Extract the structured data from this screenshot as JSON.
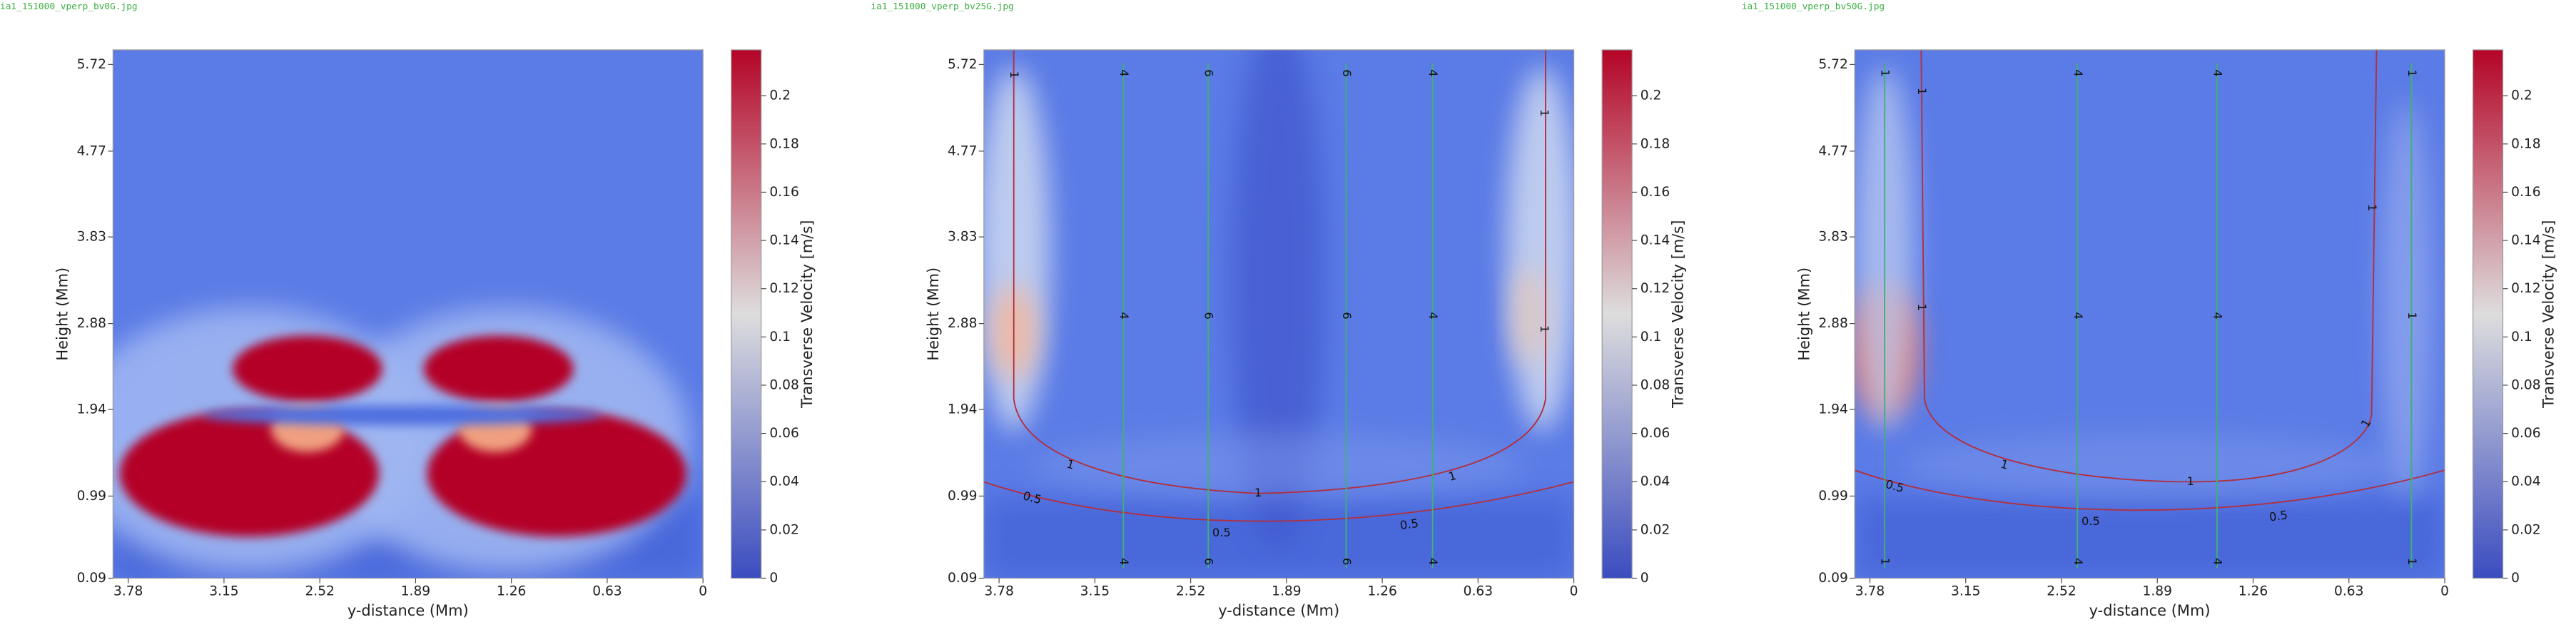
{
  "chart_data": [
    {
      "type": "heatmap",
      "title": "ia1_151000_vperp_bv0G.jpg",
      "xlabel": "y-distance (Mm)",
      "ylabel": "Height (Mm)",
      "xlim": [
        3.88,
        0
      ],
      "xticks": [
        3.78,
        3.15,
        2.52,
        1.89,
        1.26,
        0.63,
        0
      ],
      "ylim": [
        0.09,
        5.88
      ],
      "yticks": [
        0.09,
        0.99,
        1.94,
        2.88,
        3.83,
        4.77,
        5.72
      ],
      "colorbar": {
        "label": "Transverse Velocity [m/s]",
        "lim": [
          0,
          0.219
        ],
        "ticks": [
          0,
          0.02,
          0.04,
          0.06,
          0.08,
          0.1,
          0.12,
          0.14,
          0.16,
          0.18,
          0.2
        ],
        "colors": [
          "#3b4cc0",
          "#dddddd",
          "#b40426"
        ]
      }
    },
    {
      "type": "heatmap",
      "title": "ia1_151000_vperp_bv25G.jpg",
      "xlabel": "y-distance (Mm)",
      "ylabel": "Height (Mm)",
      "xlim": [
        3.88,
        0
      ],
      "xticks": [
        3.78,
        3.15,
        2.52,
        1.89,
        1.26,
        0.63,
        0
      ],
      "ylim": [
        0.09,
        5.88
      ],
      "yticks": [
        0.09,
        0.99,
        1.94,
        2.88,
        3.83,
        4.77,
        5.72
      ],
      "contour_levels": [
        0.5,
        1,
        4,
        6
      ],
      "colorbar": {
        "label": "Transverse Velocity [m/s]",
        "lim": [
          0,
          0.219
        ],
        "ticks": [
          0,
          0.02,
          0.04,
          0.06,
          0.08,
          0.1,
          0.12,
          0.14,
          0.16,
          0.18,
          0.2
        ],
        "colors": [
          "#3b4cc0",
          "#dddddd",
          "#b40426"
        ]
      }
    },
    {
      "type": "heatmap",
      "title": "ia1_151000_vperp_bv50G.jpg",
      "xlabel": "y-distance (Mm)",
      "ylabel": "Height (Mm)",
      "xlim": [
        3.88,
        0
      ],
      "xticks": [
        3.78,
        3.15,
        2.52,
        1.89,
        1.26,
        0.63,
        0
      ],
      "ylim": [
        0.09,
        5.88
      ],
      "yticks": [
        0.09,
        0.99,
        1.94,
        2.88,
        3.83,
        4.77,
        5.72
      ],
      "contour_levels": [
        0.5,
        1,
        4
      ],
      "colorbar": {
        "label": "Transverse Velocity [m/s]",
        "lim": [
          0,
          0.219
        ],
        "ticks": [
          0,
          0.02,
          0.04,
          0.06,
          0.08,
          0.1,
          0.12,
          0.14,
          0.16,
          0.18,
          0.2
        ],
        "colors": [
          "#3b4cc0",
          "#dddddd",
          "#b40426"
        ]
      }
    }
  ]
}
